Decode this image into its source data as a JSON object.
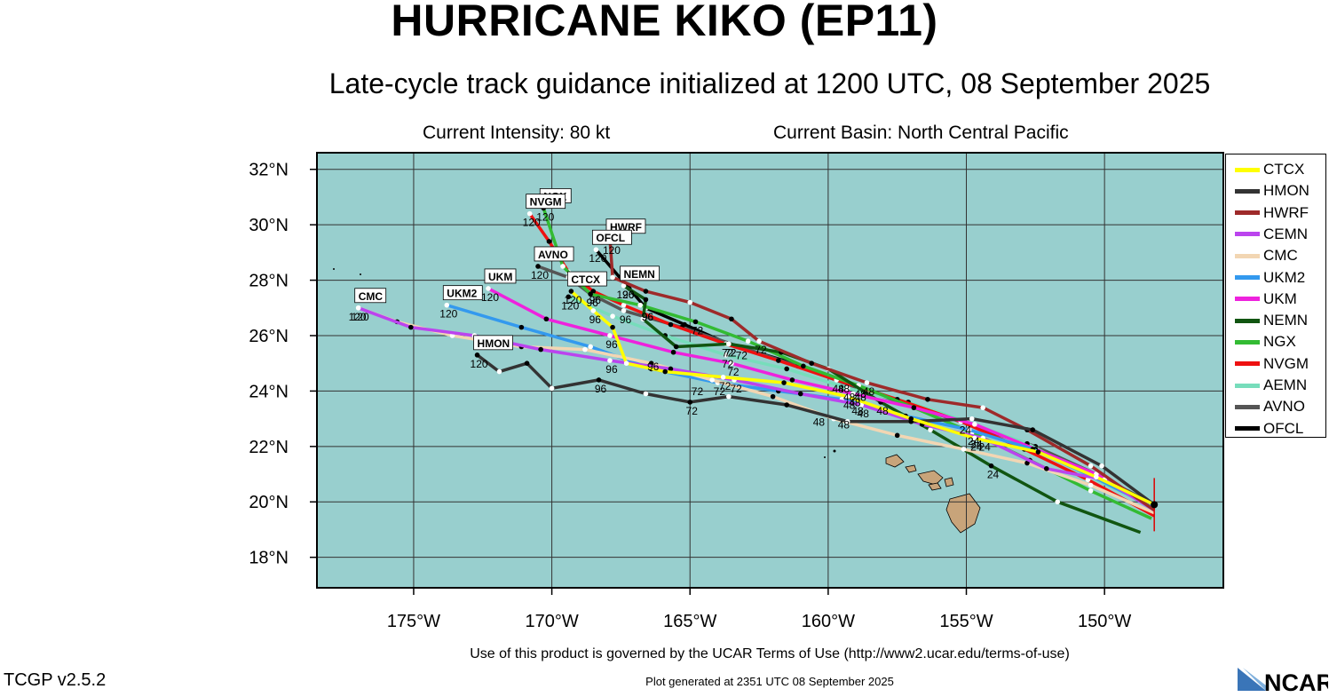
{
  "header": {
    "title": "HURRICANE KIKO (EP11)",
    "subtitle": "Late-cycle track guidance initialized at 1200 UTC, 08 September 2025",
    "intensity": "Current Intensity: 80 kt",
    "basin": "Current Basin: North Central Pacific"
  },
  "footer": {
    "terms": "Use of this product is governed by the UCAR Terms of Use (http://www2.ucar.edu/terms-of-use)",
    "generated": "Plot generated at 2351 UTC   08 September 2025",
    "version": "TCGP v2.5.2",
    "logo_text": "NCAR"
  },
  "colors": {
    "ocean": "#98cfce",
    "land": "#c8a47a",
    "grid": "#000000"
  },
  "chart_data": {
    "type": "line",
    "title": "HURRICANE KIKO (EP11)",
    "xlim": [
      -178.5,
      -145.7
    ],
    "ylim": [
      16.9,
      32.6
    ],
    "x_ticks": [
      -175,
      -170,
      -165,
      -160,
      -155,
      -150
    ],
    "x_tick_labels": [
      "175°W",
      "170°W",
      "165°W",
      "160°W",
      "155°W",
      "150°W"
    ],
    "y_ticks": [
      18,
      20,
      22,
      24,
      26,
      28,
      30,
      32
    ],
    "y_tick_labels": [
      "18°N",
      "20°N",
      "22°N",
      "24°N",
      "26°N",
      "28°N",
      "30°N",
      "32°N"
    ],
    "legend_position": "right",
    "current_position": {
      "lon": -148.2,
      "lat": 19.9
    },
    "series": [
      {
        "name": "CTCX",
        "color": "#ffff00",
        "label_box": true,
        "label_at": 4,
        "points": [
          [
            -148.2,
            19.9
          ],
          [
            -150.3,
            20.9
          ],
          [
            -152.4,
            21.8
          ],
          [
            -154.7,
            22.3
          ],
          [
            -157.0,
            23.0
          ],
          [
            -159.3,
            23.8
          ],
          [
            -161.6,
            24.3
          ],
          [
            -163.8,
            24.5
          ],
          [
            -165.9,
            24.7
          ],
          [
            -167.3,
            25.0
          ],
          [
            -167.8,
            26.3
          ],
          [
            -168.5,
            26.9
          ],
          [
            -169.3,
            27.6
          ]
        ],
        "labels": [
          {
            "lon": -154.7,
            "lat": 22.3,
            "t": "24"
          },
          {
            "lon": -159.3,
            "lat": 23.8,
            "t": "48"
          },
          {
            "lon": -163.8,
            "lat": 24.5,
            "t": "72"
          },
          {
            "lon": -168.5,
            "lat": 26.9,
            "t": "96"
          },
          {
            "lon": -169.3,
            "lat": 27.6,
            "t": "120"
          }
        ]
      },
      {
        "name": "HMON",
        "color": "#333333",
        "label_box": true,
        "points": [
          [
            -148.2,
            19.9
          ],
          [
            -150.1,
            21.3
          ],
          [
            -152.6,
            22.6
          ],
          [
            -154.8,
            23.0
          ],
          [
            -157.0,
            22.9
          ],
          [
            -159.3,
            22.9
          ],
          [
            -161.5,
            23.5
          ],
          [
            -163.6,
            23.8
          ],
          [
            -165.0,
            23.6
          ],
          [
            -166.6,
            23.9
          ],
          [
            -168.3,
            24.4
          ],
          [
            -170.0,
            24.1
          ],
          [
            -170.9,
            25.0
          ],
          [
            -171.9,
            24.7
          ],
          [
            -172.7,
            25.3
          ]
        ],
        "labels": [
          {
            "lon": -159.5,
            "lat": 23.1,
            "t": "48"
          },
          {
            "lon": -165.0,
            "lat": 23.6,
            "t": "72"
          },
          {
            "lon": -168.3,
            "lat": 24.4,
            "t": "96"
          },
          {
            "lon": -172.7,
            "lat": 25.3,
            "t": "120"
          }
        ]
      },
      {
        "name": "HWRF",
        "color": "#9e2a2a",
        "label_box": true,
        "points": [
          [
            -148.2,
            19.7
          ],
          [
            -150.5,
            21.3
          ],
          [
            -152.8,
            22.6
          ],
          [
            -154.4,
            23.4
          ],
          [
            -156.4,
            23.7
          ],
          [
            -158.6,
            24.3
          ],
          [
            -160.6,
            25.0
          ],
          [
            -162.5,
            25.8
          ],
          [
            -163.5,
            26.6
          ],
          [
            -165.0,
            27.2
          ],
          [
            -166.6,
            27.6
          ],
          [
            -167.8,
            28.1
          ],
          [
            -167.9,
            29.5
          ]
        ],
        "labels": [
          {
            "lon": -158.6,
            "lat": 24.3,
            "t": "48"
          },
          {
            "lon": -162.5,
            "lat": 25.8,
            "t": "72"
          },
          {
            "lon": -167.3,
            "lat": 27.8,
            "t": "96"
          },
          {
            "lon": -167.9,
            "lat": 29.4,
            "t": "120"
          }
        ]
      },
      {
        "name": "CEMN",
        "color": "#bb44ee",
        "points": [
          [
            -148.2,
            19.7
          ],
          [
            -150.0,
            20.8
          ],
          [
            -152.1,
            21.2
          ],
          [
            -154.4,
            22.3
          ],
          [
            -156.6,
            22.8
          ],
          [
            -158.8,
            23.5
          ],
          [
            -161.0,
            23.9
          ],
          [
            -163.4,
            24.4
          ],
          [
            -165.7,
            24.8
          ],
          [
            -167.9,
            25.1
          ],
          [
            -170.4,
            25.5
          ],
          [
            -172.8,
            26.0
          ],
          [
            -175.1,
            26.3
          ],
          [
            -177.0,
            27.0
          ]
        ],
        "labels": [
          {
            "lon": -154.4,
            "lat": 22.3,
            "t": "24"
          },
          {
            "lon": -158.8,
            "lat": 23.5,
            "t": "48"
          },
          {
            "lon": -163.4,
            "lat": 24.4,
            "t": "72"
          },
          {
            "lon": -167.9,
            "lat": 25.1,
            "t": "96"
          },
          {
            "lon": -177.0,
            "lat": 27.0,
            "t": "120"
          }
        ]
      },
      {
        "name": "CMC",
        "color": "#f2d6b3",
        "label_box": true,
        "points": [
          [
            -148.2,
            19.6
          ],
          [
            -150.5,
            20.6
          ],
          [
            -152.8,
            21.4
          ],
          [
            -155.1,
            21.9
          ],
          [
            -157.5,
            22.4
          ],
          [
            -159.8,
            23.0
          ],
          [
            -162.0,
            23.8
          ],
          [
            -164.2,
            24.4
          ],
          [
            -166.4,
            25.0
          ],
          [
            -168.8,
            25.5
          ],
          [
            -171.1,
            25.6
          ],
          [
            -173.6,
            26.0
          ],
          [
            -175.6,
            26.5
          ],
          [
            -177.0,
            27.0
          ]
        ],
        "labels": [
          {
            "lon": -160.4,
            "lat": 23.2,
            "t": "48"
          },
          {
            "lon": -164.8,
            "lat": 24.3,
            "t": "72"
          },
          {
            "lon": -177.1,
            "lat": 27.0,
            "t": "120"
          }
        ]
      },
      {
        "name": "UKM2",
        "color": "#3399ee",
        "label_box": true,
        "points": [
          [
            -148.2,
            19.8
          ],
          [
            -150.4,
            20.9
          ],
          [
            -152.6,
            21.9
          ],
          [
            -154.9,
            22.6
          ],
          [
            -157.2,
            23.1
          ],
          [
            -159.5,
            23.7
          ],
          [
            -161.8,
            24.0
          ],
          [
            -164.0,
            24.3
          ],
          [
            -166.4,
            24.8
          ],
          [
            -168.6,
            25.6
          ],
          [
            -171.1,
            26.3
          ],
          [
            -173.8,
            27.1
          ]
        ],
        "labels": [
          {
            "lon": -159.0,
            "lat": 23.6,
            "t": "48"
          },
          {
            "lon": -164.0,
            "lat": 24.3,
            "t": "72"
          },
          {
            "lon": -166.4,
            "lat": 25.2,
            "t": "96"
          },
          {
            "lon": -173.8,
            "lat": 27.1,
            "t": "120"
          }
        ]
      },
      {
        "name": "UKM",
        "color": "#ee22dd",
        "label_box": true,
        "points": [
          [
            -148.2,
            19.8
          ],
          [
            -150.3,
            21.0
          ],
          [
            -152.5,
            21.9
          ],
          [
            -154.7,
            22.8
          ],
          [
            -156.9,
            23.4
          ],
          [
            -159.1,
            23.9
          ],
          [
            -161.3,
            24.4
          ],
          [
            -163.5,
            25.0
          ],
          [
            -165.6,
            25.4
          ],
          [
            -167.9,
            26.0
          ],
          [
            -170.2,
            26.6
          ],
          [
            -172.3,
            27.7
          ]
        ],
        "labels": [
          {
            "lon": -154.7,
            "lat": 22.4,
            "t": "24"
          },
          {
            "lon": -159.1,
            "lat": 23.9,
            "t": "48"
          },
          {
            "lon": -163.5,
            "lat": 25.0,
            "t": "72"
          },
          {
            "lon": -167.9,
            "lat": 26.0,
            "t": "96"
          },
          {
            "lon": -172.3,
            "lat": 27.7,
            "t": "120"
          }
        ]
      },
      {
        "name": "NEMN",
        "color": "#115511",
        "label_box": true,
        "points": [
          [
            -148.7,
            18.9
          ],
          [
            -151.7,
            20.0
          ],
          [
            -154.1,
            21.3
          ],
          [
            -156.3,
            22.6
          ],
          [
            -158.1,
            23.6
          ],
          [
            -160.0,
            24.8
          ],
          [
            -161.7,
            25.4
          ],
          [
            -163.6,
            25.7
          ],
          [
            -165.5,
            25.6
          ],
          [
            -166.7,
            26.6
          ],
          [
            -166.6,
            27.3
          ],
          [
            -167.4,
            27.8
          ]
        ],
        "labels": [
          {
            "lon": -154.1,
            "lat": 21.3,
            "t": "24"
          },
          {
            "lon": -158.1,
            "lat": 23.6,
            "t": "48"
          },
          {
            "lon": -163.6,
            "lat": 25.7,
            "t": "72"
          },
          {
            "lon": -166.6,
            "lat": 27.0,
            "t": "96"
          },
          {
            "lon": -167.4,
            "lat": 27.8,
            "t": "120"
          }
        ]
      },
      {
        "name": "NGX",
        "color": "#33bb33",
        "label_box": true,
        "points": [
          [
            -148.3,
            19.4
          ],
          [
            -150.5,
            20.4
          ],
          [
            -152.7,
            21.5
          ],
          [
            -154.8,
            22.5
          ],
          [
            -156.9,
            23.4
          ],
          [
            -158.9,
            24.2
          ],
          [
            -160.9,
            24.9
          ],
          [
            -162.9,
            25.8
          ],
          [
            -164.8,
            26.5
          ],
          [
            -166.8,
            27.1
          ],
          [
            -168.6,
            27.5
          ],
          [
            -169.6,
            28.5
          ],
          [
            -170.3,
            30.6
          ]
        ],
        "labels": [
          {
            "lon": -154.8,
            "lat": 22.5,
            "t": "24"
          },
          {
            "lon": -158.9,
            "lat": 24.2,
            "t": "48"
          },
          {
            "lon": -164.8,
            "lat": 26.5,
            "t": "72"
          },
          {
            "lon": -168.6,
            "lat": 27.5,
            "t": "96"
          },
          {
            "lon": -170.3,
            "lat": 30.6,
            "t": "120"
          }
        ]
      },
      {
        "name": "NVGM",
        "color": "#ee1111",
        "label_box": true,
        "points": [
          [
            -148.2,
            19.5
          ],
          [
            -150.6,
            20.8
          ],
          [
            -152.9,
            21.9
          ],
          [
            -155.2,
            22.9
          ],
          [
            -157.5,
            23.7
          ],
          [
            -159.7,
            24.4
          ],
          [
            -161.8,
            25.1
          ],
          [
            -163.7,
            25.7
          ],
          [
            -165.7,
            26.4
          ],
          [
            -167.4,
            27.1
          ],
          [
            -168.5,
            27.6
          ],
          [
            -169.4,
            28.3
          ],
          [
            -170.1,
            29.4
          ],
          [
            -170.8,
            30.4
          ]
        ],
        "labels": [
          {
            "lon": -159.7,
            "lat": 24.4,
            "t": "48"
          },
          {
            "lon": -163.7,
            "lat": 25.7,
            "t": "72"
          },
          {
            "lon": -168.5,
            "lat": 27.6,
            "t": "96"
          },
          {
            "lon": -170.8,
            "lat": 30.4,
            "t": "120"
          }
        ]
      },
      {
        "name": "AEMN",
        "color": "#77ddbb",
        "points": [
          [
            -148.2,
            19.8
          ],
          [
            -150.5,
            20.9
          ],
          [
            -152.8,
            22.1
          ],
          [
            -155.0,
            22.9
          ],
          [
            -157.1,
            23.6
          ],
          [
            -159.3,
            24.1
          ],
          [
            -161.5,
            24.8
          ],
          [
            -163.7,
            25.3
          ],
          [
            -165.9,
            26.0
          ],
          [
            -167.8,
            26.7
          ],
          [
            -169.4,
            27.4
          ]
        ],
        "labels": [
          {
            "lon": -159.3,
            "lat": 24.1,
            "t": "48"
          },
          {
            "lon": -163.7,
            "lat": 25.3,
            "t": "72"
          },
          {
            "lon": -169.4,
            "lat": 27.4,
            "t": "120"
          }
        ]
      },
      {
        "name": "AVNO",
        "color": "#555555",
        "label_box": true,
        "points": [
          [
            -148.2,
            19.9
          ],
          [
            -150.3,
            21.0
          ],
          [
            -152.5,
            22.0
          ],
          [
            -154.6,
            22.7
          ],
          [
            -156.8,
            23.4
          ],
          [
            -158.9,
            24.1
          ],
          [
            -161.1,
            24.9
          ],
          [
            -163.2,
            25.6
          ],
          [
            -165.3,
            26.3
          ],
          [
            -167.4,
            26.9
          ],
          [
            -168.6,
            27.5
          ],
          [
            -169.4,
            28.1
          ],
          [
            -170.5,
            28.5
          ]
        ],
        "labels": [
          {
            "lon": -158.9,
            "lat": 24.1,
            "t": "48"
          },
          {
            "lon": -163.2,
            "lat": 25.6,
            "t": "72"
          },
          {
            "lon": -167.4,
            "lat": 26.9,
            "t": "96"
          },
          {
            "lon": -170.5,
            "lat": 28.5,
            "t": "120"
          }
        ]
      },
      {
        "name": "OFCL",
        "color": "#000000",
        "label_box": true,
        "points": [
          [
            -148.2,
            19.9
          ],
          [
            -150.6,
            21.1
          ],
          [
            -152.9,
            22.1
          ],
          [
            -155.1,
            22.9
          ],
          [
            -157.3,
            23.6
          ],
          [
            -159.5,
            24.4
          ],
          [
            -161.6,
            25.1
          ],
          [
            -163.6,
            25.7
          ],
          [
            -165.2,
            26.4
          ],
          [
            -166.6,
            27.0
          ],
          [
            -167.2,
            27.7
          ],
          [
            -168.4,
            29.1
          ]
        ],
        "labels": [
          {
            "lon": -155.1,
            "lat": 22.9,
            "t": "24"
          },
          {
            "lon": -159.5,
            "lat": 24.4,
            "t": "48"
          },
          {
            "lon": -163.6,
            "lat": 25.7,
            "t": "72"
          },
          {
            "lon": -166.6,
            "lat": 27.0,
            "t": "96"
          },
          {
            "lon": -168.4,
            "lat": 29.1,
            "t": "120"
          }
        ]
      }
    ]
  }
}
